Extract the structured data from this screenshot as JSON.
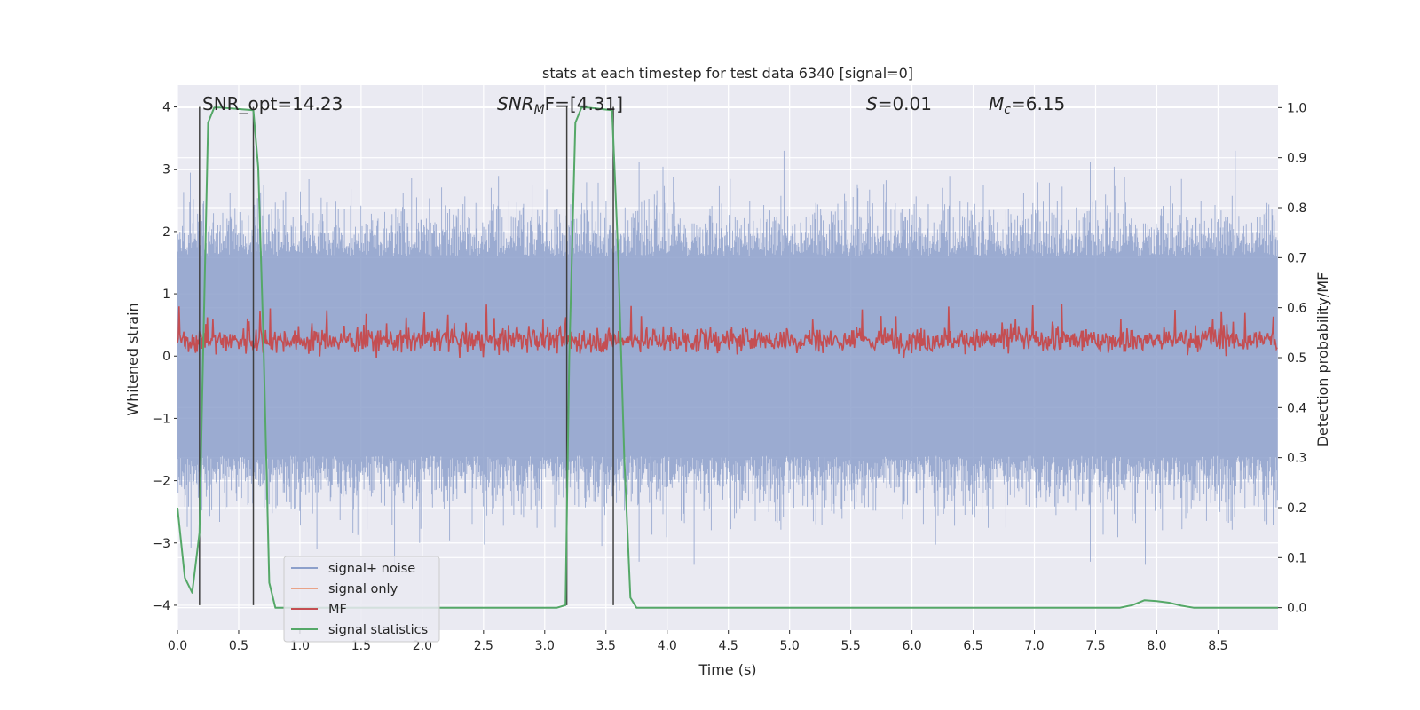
{
  "chart_data": {
    "type": "line",
    "title": "stats at each timestep for test data 6340 [signal=0]",
    "xlabel": "Time (s)",
    "ylabel": "Whitened strain",
    "y2label": "Detection probability/MF",
    "xlim": [
      0,
      8.99
    ],
    "ylim": [
      -4.4,
      4.35
    ],
    "y2lim": [
      -0.045,
      1.045
    ],
    "xticks": [
      "0.0",
      "0.5",
      "1.0",
      "1.5",
      "2.0",
      "2.5",
      "3.0",
      "3.5",
      "4.0",
      "4.5",
      "5.0",
      "5.5",
      "6.0",
      "6.5",
      "7.0",
      "7.5",
      "8.0",
      "8.5"
    ],
    "yticks": [
      "4",
      "3",
      "2",
      "1",
      "0",
      "−1",
      "−2",
      "−3",
      "−4"
    ],
    "y2ticks": [
      "1.0",
      "0.9",
      "0.8",
      "0.7",
      "0.6",
      "0.5",
      "0.4",
      "0.3",
      "0.2",
      "0.1",
      "0.0"
    ],
    "annotations": {
      "snr_opt": "SNR_opt=14.23",
      "snr_mf_main": "SNR",
      "snr_mf_sub": "M",
      "snr_mf_tail": "F=[4.31]",
      "s_main": "S",
      "s_tail": "=0.01",
      "mc_main": "M",
      "mc_sub": "c",
      "mc_tail": "=6.15"
    },
    "legend": [
      {
        "label": "signal+ noise",
        "color": "#8da0cb"
      },
      {
        "label": "signal only",
        "color": "#e9a388"
      },
      {
        "label": "MF",
        "color": "#c44e52"
      },
      {
        "label": "signal statistics",
        "color": "#55a868"
      }
    ],
    "series": [
      {
        "name": "signal statistics",
        "axis": "right",
        "color": "#55a868",
        "x": [
          0.0,
          0.06,
          0.12,
          0.18,
          0.2,
          0.25,
          0.3,
          0.35,
          0.62,
          0.66,
          0.7,
          0.75,
          0.8,
          0.85,
          3.1,
          3.17,
          3.2,
          3.25,
          3.3,
          3.35,
          3.55,
          3.6,
          3.65,
          3.7,
          3.75,
          3.8,
          7.7,
          7.8,
          7.9,
          8.0,
          8.1,
          8.2,
          8.3,
          8.4,
          8.99
        ],
        "values": [
          0.2,
          0.06,
          0.03,
          0.15,
          0.4,
          0.97,
          1.0,
          1.0,
          0.995,
          0.88,
          0.55,
          0.05,
          0.0,
          0.0,
          0.0,
          0.005,
          0.5,
          0.97,
          1.0,
          1.0,
          0.995,
          0.7,
          0.3,
          0.02,
          0.0,
          0.0,
          0.0,
          0.005,
          0.015,
          0.013,
          0.01,
          0.004,
          0.0,
          0.0,
          0.0
        ]
      },
      {
        "name": "vertical markers",
        "axis": "left",
        "color": "#404040",
        "x": [
          0.18,
          0.62,
          3.18,
          3.56
        ],
        "from": -4.0,
        "to": 4.0
      },
      {
        "name": "signal+ noise",
        "axis": "left",
        "color": "#8da0cb",
        "description": "whitened strain noise, peaks roughly within ±3.9"
      },
      {
        "name": "MF",
        "axis": "right",
        "color": "#c44e52",
        "description": "matched filter output fluctuating around 0.52 (range ~0.5–0.62)"
      }
    ]
  }
}
